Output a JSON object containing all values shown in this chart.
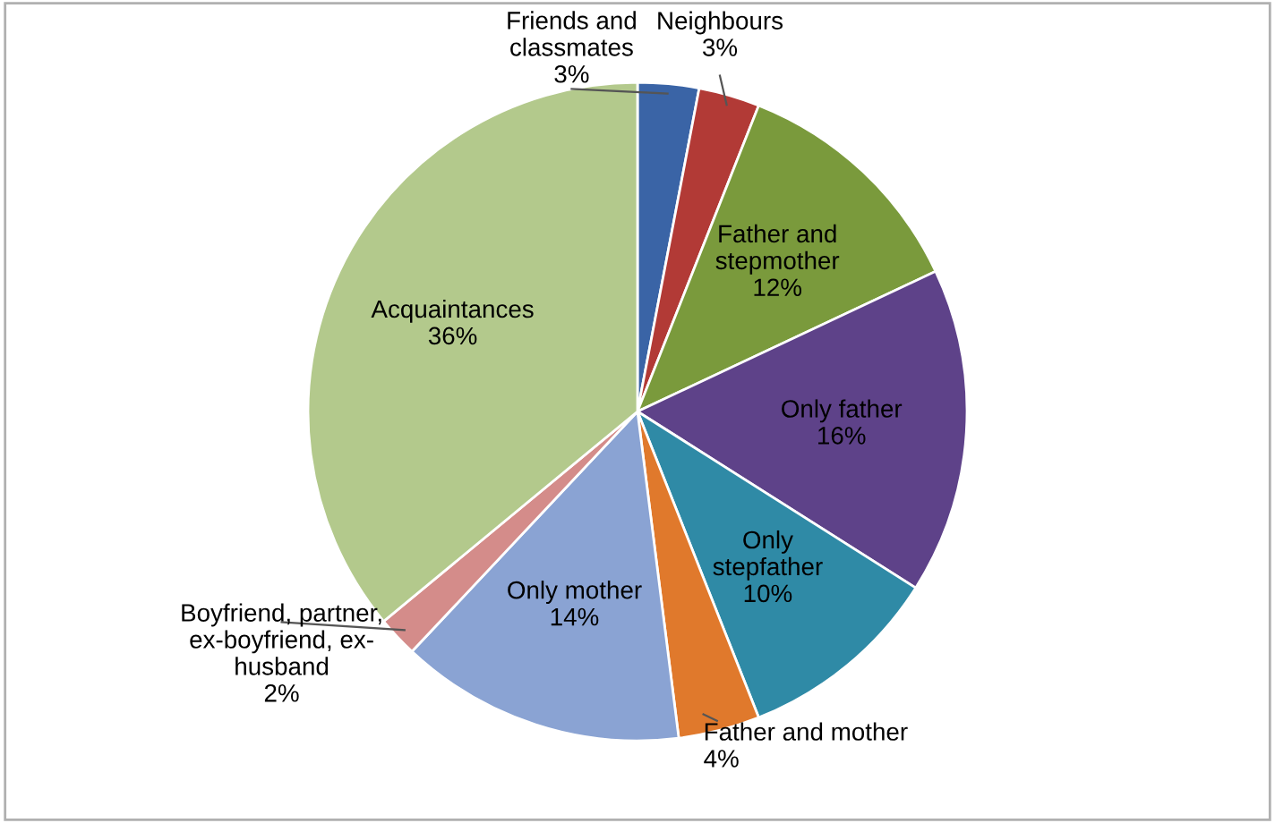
{
  "chart_data": {
    "type": "pie",
    "categories": [
      "Friends and\nclassmates",
      "Neighbours",
      "Father and\nstepmother",
      "Only father",
      "Only\nstepfather",
      "Father and mother",
      "Only mother",
      "Boyfriend, partner,\nex-boyfriend, ex-\nhusband",
      "Acquaintances"
    ],
    "values": [
      3,
      3,
      12,
      16,
      10,
      4,
      14,
      2,
      36
    ],
    "value_labels": [
      "3%",
      "3%",
      "12%",
      "16%",
      "10%",
      "4%",
      "14%",
      "2%",
      "36%"
    ],
    "colors": [
      "#3a64a6",
      "#b23a36",
      "#7a9a3c",
      "#5e4289",
      "#2f8aa6",
      "#e0792c",
      "#8aa3d3",
      "#d48c8a",
      "#b3c98c"
    ],
    "legend": false
  }
}
